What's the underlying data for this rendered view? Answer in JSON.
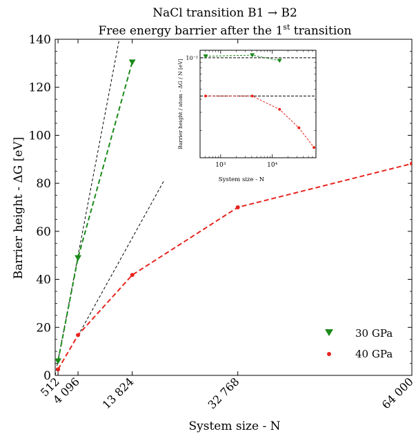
{
  "chart_data": [
    {
      "type": "line",
      "title_line1": "NaCl transition B1 → B2",
      "title_line2_prefix": "Free energy barrier after the 1",
      "title_line2_sup": "st",
      "title_line2_suffix": " transition",
      "xlabel": "System size - N",
      "ylabel": "Barrier height - ΔG [eV]",
      "xlim": [
        0,
        64000
      ],
      "ylim": [
        0,
        140
      ],
      "xticks": [
        512,
        4096,
        13824,
        32768,
        64000
      ],
      "xtick_labels": [
        "512",
        "4 096",
        "13 824",
        "32 768",
        "64 000"
      ],
      "yticks": [
        0,
        20,
        40,
        60,
        80,
        100,
        120,
        140
      ],
      "ytick_labels": [
        "0",
        "20",
        "40",
        "60",
        "80",
        "100",
        "120",
        "140"
      ],
      "legend_position": "bottom-right",
      "series": [
        {
          "name": "30 GPa",
          "color": "#1a8a1a",
          "marker": "triangle-down",
          "x": [
            512,
            4096,
            13824
          ],
          "y": [
            6,
            49,
            130.5
          ]
        },
        {
          "name": "40 GPa",
          "color": "#e8241e",
          "marker": "circle",
          "x": [
            512,
            4096,
            13824,
            32768,
            64000
          ],
          "y": [
            2.5,
            16.8,
            41.8,
            70,
            88.2
          ]
        }
      ],
      "reference_lines": [
        {
          "x": [
            0,
            11500
          ],
          "y": [
            0,
            140
          ]
        },
        {
          "x": [
            4096,
            19500
          ],
          "y": [
            16.5,
            81
          ]
        }
      ]
    },
    {
      "type": "line",
      "inset": true,
      "position": "top-right",
      "xlabel": "System size - N",
      "ylabel": "Barrier height / atom - ΔG / N [eV]",
      "x_scale": "log",
      "y_scale": "log",
      "xtick_labels": [
        "10³",
        "10⁴"
      ],
      "xtick_values": [
        1000,
        10000
      ],
      "ytick_label": "10⁻²",
      "ytick_value": 0.01,
      "xlim": [
        400,
        70000
      ],
      "ylim": [
        0.0011,
        0.0118
      ],
      "series": [
        {
          "name": "30 GPa",
          "color": "#1a8a1a",
          "marker": "triangle-down",
          "x": [
            512,
            4096,
            13824
          ],
          "y": [
            0.01035,
            0.0106,
            0.0094
          ]
        },
        {
          "name": "40 GPa",
          "color": "#e8241e",
          "marker": "circle",
          "x": [
            512,
            4096,
            13824,
            32768,
            64000
          ],
          "y": [
            0.0043,
            0.0043,
            0.0032,
            0.00213,
            0.00138
          ]
        }
      ],
      "reference_lines": [
        {
          "y": 0.01
        },
        {
          "y": 0.0043
        }
      ]
    }
  ]
}
